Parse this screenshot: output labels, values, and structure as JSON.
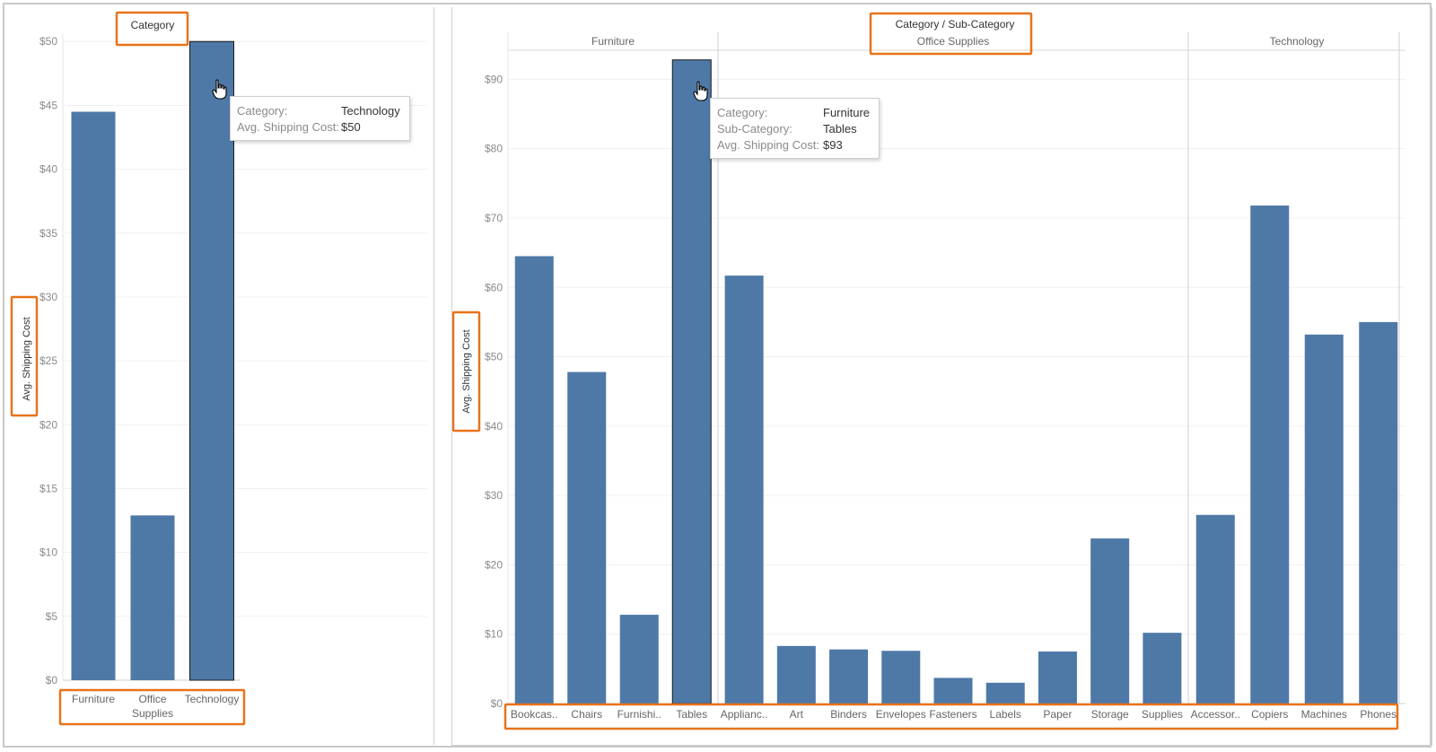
{
  "chart_data": [
    {
      "type": "bar",
      "title": "Category",
      "ylabel": "Avg. Shipping Cost",
      "xlabel": "",
      "categories": [
        "Furniture",
        "Office Supplies",
        "Technology"
      ],
      "category_display": [
        [
          "Furniture"
        ],
        [
          "Office",
          "Supplies"
        ],
        [
          "Technology"
        ]
      ],
      "values": [
        44.5,
        12.9,
        50.0
      ],
      "ylim": [
        0,
        51
      ],
      "yticks": [
        0,
        5,
        10,
        15,
        20,
        25,
        30,
        35,
        40,
        45,
        50
      ],
      "ytick_labels": [
        "$0",
        "$5",
        "$10",
        "$15",
        "$20",
        "$25",
        "$30",
        "$35",
        "$40",
        "$45",
        "$50"
      ],
      "grid": true,
      "color": "#4e79a7",
      "highlighted": "Technology",
      "tooltip": {
        "rows": [
          {
            "key": "Category:",
            "value": "Technology"
          },
          {
            "key": "Avg. Shipping Cost:",
            "value": "$50"
          }
        ]
      }
    },
    {
      "type": "bar",
      "title": "Category / Sub-Category",
      "ylabel": "Avg. Shipping Cost",
      "xlabel": "",
      "groups": [
        {
          "name": "Furniture",
          "categories": [
            "Bookcas..",
            "Chairs",
            "Furnishi..",
            "Tables"
          ],
          "values": [
            64.5,
            47.8,
            12.8,
            92.8
          ]
        },
        {
          "name": "Office Supplies",
          "categories": [
            "Applianc..",
            "Art",
            "Binders",
            "Envelopes",
            "Fasteners",
            "Labels",
            "Paper",
            "Storage",
            "Supplies"
          ],
          "values": [
            61.7,
            8.3,
            7.8,
            7.6,
            3.7,
            3.0,
            7.5,
            23.8,
            10.2
          ]
        },
        {
          "name": "Technology",
          "categories": [
            "Accessor..",
            "Copiers",
            "Machines",
            "Phones"
          ],
          "values": [
            27.2,
            71.8,
            53.2,
            55.0
          ]
        }
      ],
      "ylim": [
        0,
        96
      ],
      "yticks": [
        0,
        10,
        20,
        30,
        40,
        50,
        60,
        70,
        80,
        90
      ],
      "ytick_labels": [
        "$0",
        "$10",
        "$20",
        "$30",
        "$40",
        "$50",
        "$60",
        "$70",
        "$80",
        "$90"
      ],
      "grid": true,
      "color": "#4e79a7",
      "highlighted": "Tables",
      "tooltip": {
        "rows": [
          {
            "key": "Category:",
            "value": "Furniture"
          },
          {
            "key": "Sub-Category:",
            "value": "Tables"
          },
          {
            "key": "Avg. Shipping Cost:",
            "value": "$93"
          }
        ]
      }
    }
  ],
  "annotation_color": "#e8731a"
}
